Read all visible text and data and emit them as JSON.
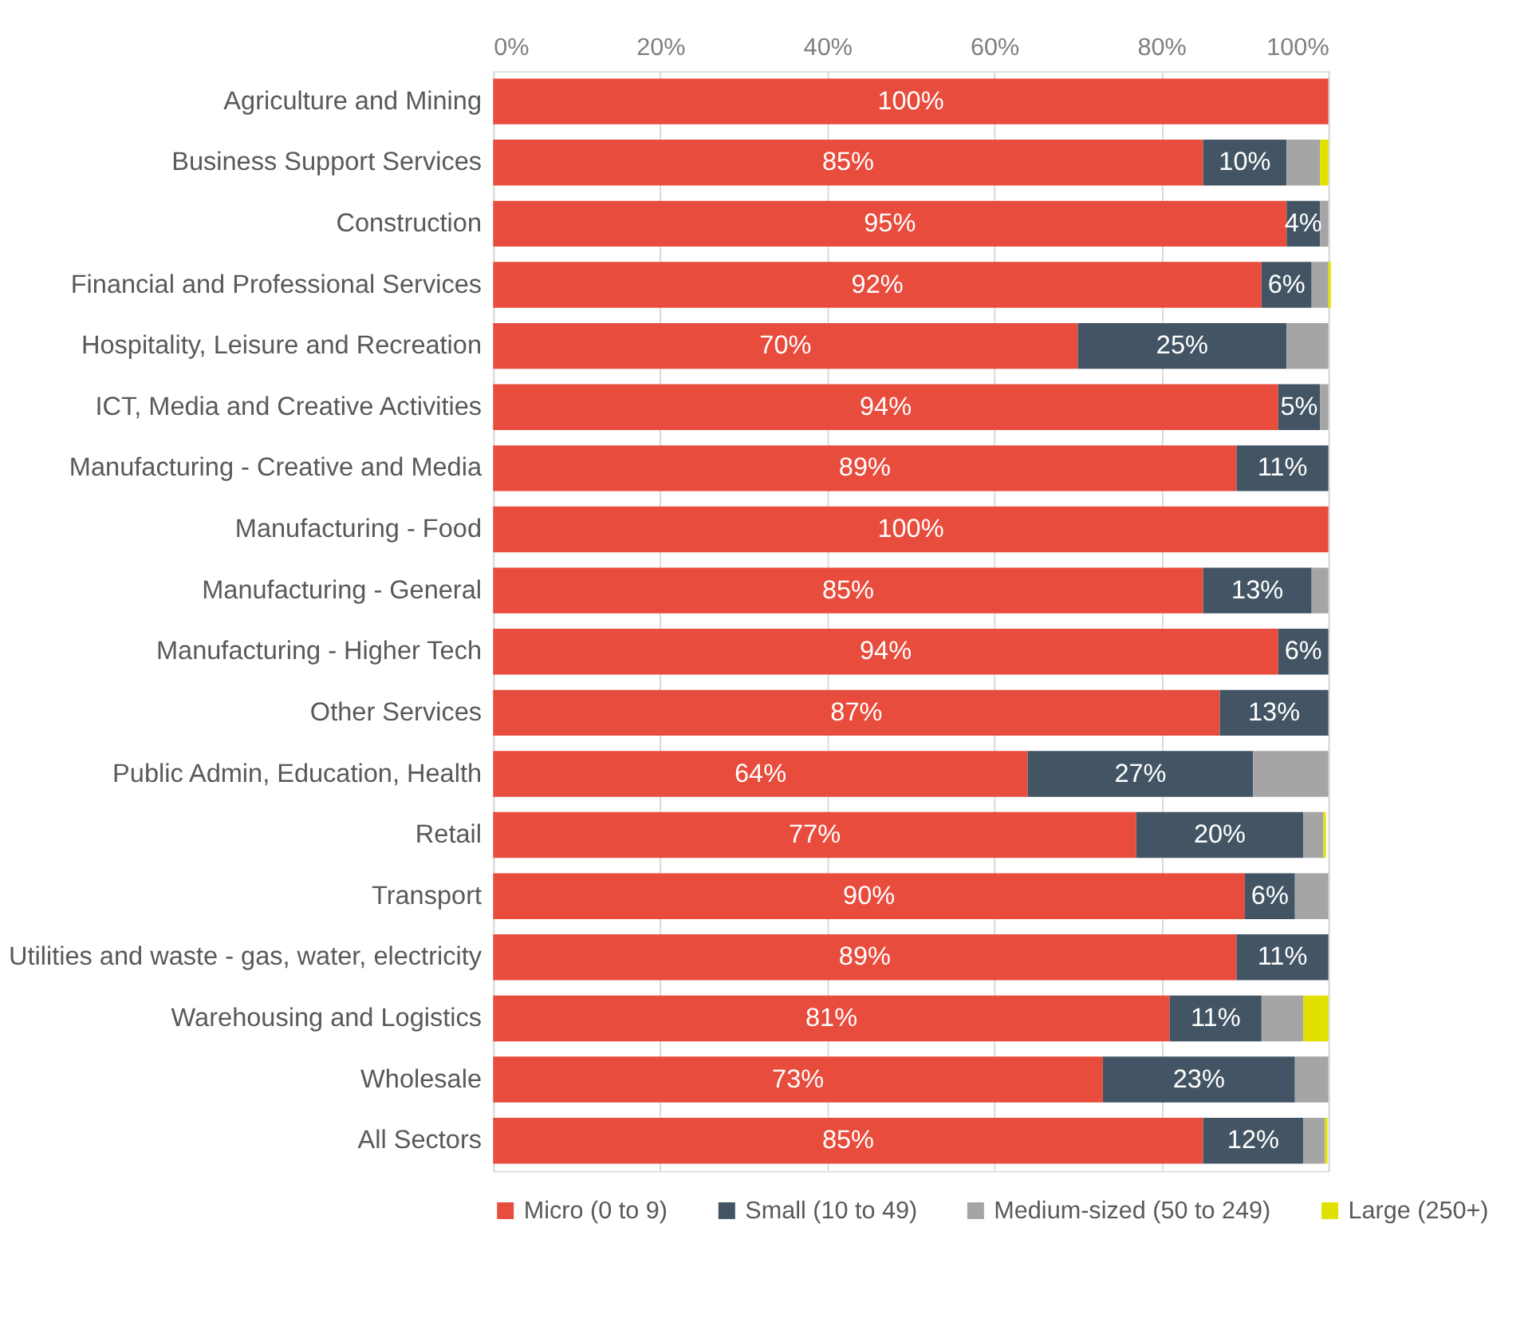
{
  "chart_data": {
    "type": "bar",
    "orientation": "horizontal",
    "stacked": true,
    "categories": [
      "Agriculture and Mining",
      "Business Support Services",
      "Construction",
      "Financial and Professional Services",
      "Hospitality, Leisure and Recreation",
      "ICT, Media and Creative Activities",
      "Manufacturing - Creative and Media",
      "Manufacturing - Food",
      "Manufacturing - General",
      "Manufacturing - Higher Tech",
      "Other Services",
      "Public Admin, Education, Health",
      "Retail",
      "Transport",
      "Utilities and waste - gas, water, electricity",
      "Warehousing and Logistics",
      "Wholesale",
      "All Sectors"
    ],
    "series": [
      {
        "name": "Micro (0 to 9)",
        "color": "#e84c3d",
        "values": [
          100,
          85,
          95,
          92,
          70,
          94,
          89,
          100,
          85,
          94,
          87,
          64,
          77,
          90,
          89,
          81,
          73,
          85
        ],
        "value_labels": [
          "100%",
          "85%",
          "95%",
          "92%",
          "70%",
          "94%",
          "89%",
          "100%",
          "85%",
          "94%",
          "87%",
          "64%",
          "77%",
          "90%",
          "89%",
          "81%",
          "73%",
          "85%"
        ]
      },
      {
        "name": "Small (10 to 49)",
        "color": "#435564",
        "values": [
          0,
          10,
          4,
          6,
          25,
          5,
          11,
          0,
          13,
          6,
          13,
          27,
          20,
          6,
          11,
          11,
          23,
          12
        ],
        "value_labels": [
          null,
          "10%",
          "4%",
          "6%",
          "25%",
          "5%",
          "11%",
          null,
          "13%",
          "6%",
          "13%",
          "27%",
          "20%",
          "6%",
          "11%",
          "11%",
          "23%",
          "12%"
        ]
      },
      {
        "name": "Medium-sized (50 to 249)",
        "color": "#a5a5a5",
        "values": [
          0,
          4,
          1,
          2,
          5,
          1,
          0,
          0,
          2,
          0,
          0,
          9,
          2.4,
          4,
          0,
          5,
          4,
          2.6
        ]
      },
      {
        "name": "Large (250+)",
        "color": "#e2e000",
        "values": [
          0,
          1,
          0,
          0.3,
          0,
          0,
          0,
          0,
          0,
          0,
          0,
          0,
          0.3,
          0,
          0,
          3,
          0,
          0.3
        ]
      }
    ],
    "xlim": [
      0,
      100
    ],
    "xticks": [
      {
        "value": 0,
        "label": "0%"
      },
      {
        "value": 20,
        "label": "20%"
      },
      {
        "value": 40,
        "label": "40%"
      },
      {
        "value": 60,
        "label": "60%"
      },
      {
        "value": 80,
        "label": "80%"
      },
      {
        "value": 100,
        "label": "100%"
      }
    ],
    "grid": "x",
    "legend": "bottom"
  }
}
